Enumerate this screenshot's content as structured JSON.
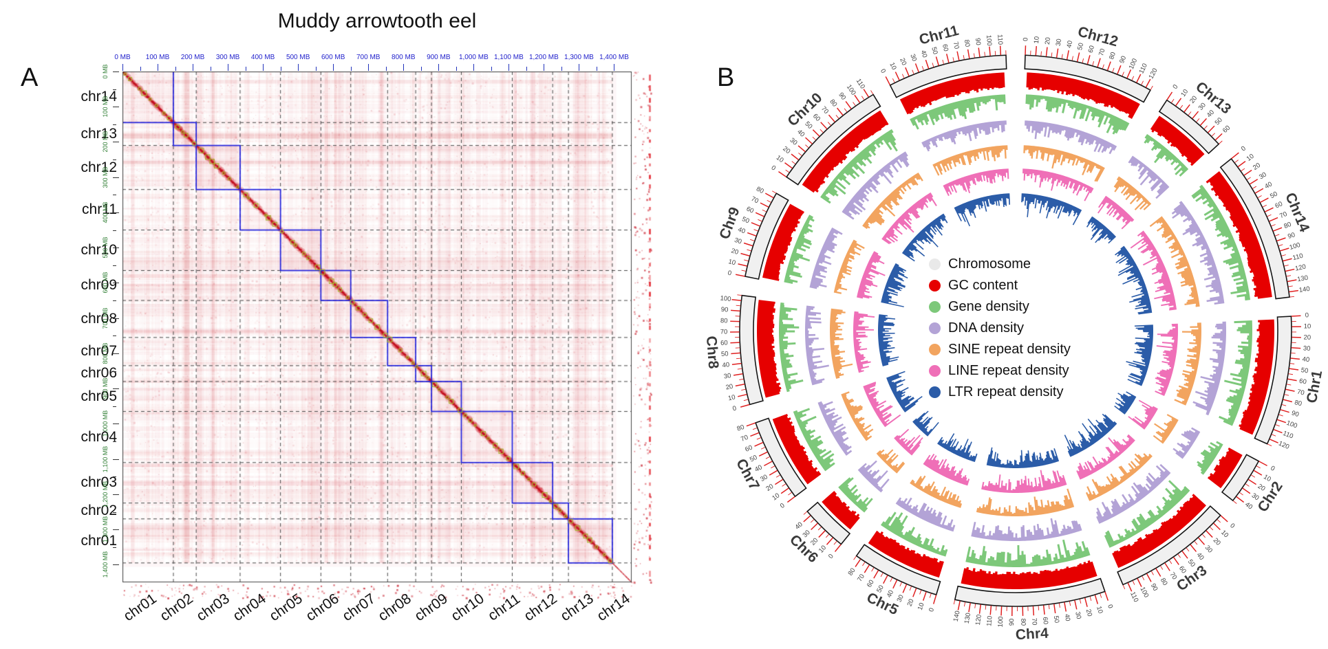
{
  "figure": {
    "background": "#ffffff"
  },
  "chromosomes": [
    {
      "name": "Chr1",
      "length_mb": 125
    },
    {
      "name": "Chr2",
      "length_mb": 45
    },
    {
      "name": "Chr3",
      "length_mb": 115
    },
    {
      "name": "Chr4",
      "length_mb": 145
    },
    {
      "name": "Chr5",
      "length_mb": 85
    },
    {
      "name": "Chr6",
      "length_mb": 45
    },
    {
      "name": "Chr7",
      "length_mb": 80
    },
    {
      "name": "Chr8",
      "length_mb": 105
    },
    {
      "name": "Chr9",
      "length_mb": 85
    },
    {
      "name": "Chr10",
      "length_mb": 115
    },
    {
      "name": "Chr11",
      "length_mb": 115
    },
    {
      "name": "Chr12",
      "length_mb": 125
    },
    {
      "name": "Chr13",
      "length_mb": 65
    },
    {
      "name": "Chr14",
      "length_mb": 145
    }
  ],
  "panelA": {
    "label": "A",
    "title": "Muddy arrowtooth eel",
    "top_axis_labels": [
      "0 MB",
      "100 MB",
      "200 MB",
      "300 MB",
      "400 MB",
      "500 MB",
      "600 MB",
      "700 MB",
      "800 MB",
      "900 MB",
      "1,000 MB",
      "1,100 MB",
      "1,200 MB",
      "1,300 MB",
      "1,400 MB"
    ],
    "left_axis_labels": [
      "0 MB",
      "100 MB",
      "200 MB",
      "300 MB",
      "400 MB",
      "500 MB",
      "600 MB",
      "700 MB",
      "800 MB",
      "900 MB",
      "1,000 MB",
      "1,100 MB",
      "1,200 MB",
      "1,300 MB",
      "1,400 MB"
    ],
    "row_labels": [
      "chr14",
      "chr13",
      "chr12",
      "chr11",
      "chr10",
      "chr09",
      "chr08",
      "chr07",
      "chr06",
      "chr05",
      "chr04",
      "chr03",
      "chr02",
      "chr01"
    ],
    "col_labels": [
      "chr01",
      "chr02",
      "chr03",
      "chr04",
      "chr05",
      "chr06",
      "chr07",
      "chr08",
      "chr09",
      "chr10",
      "chr11",
      "chr12",
      "chr13",
      "chr14"
    ],
    "total_axis_mb": 1450,
    "seed": 1337,
    "colors": {
      "heat_base": "#cd2330",
      "heat_diag": "#c30d1d",
      "block_border": "#2121dd",
      "scaffold_square": "#a6b52c",
      "top_axis_text": "#2222cc",
      "left_mb_text": "#2e7d32",
      "grid_dash": "#464646",
      "border": "#444444"
    }
  },
  "panelB": {
    "label": "B",
    "legend": [
      {
        "label": "Chromosome",
        "color": "#e9e9e9"
      },
      {
        "label": "GC content",
        "color": "#e60000"
      },
      {
        "label": "Gene density",
        "color": "#7dc87a"
      },
      {
        "label": "DNA density",
        "color": "#b3a3d6"
      },
      {
        "label": "SINE repeat density",
        "color": "#f2a45f"
      },
      {
        "label": "LINE repeat density",
        "color": "#ef6fb7"
      },
      {
        "label": "LTR repeat density",
        "color": "#2b5ca8"
      }
    ],
    "ring": {
      "fill": "#f0f0f0",
      "stroke": "#151515",
      "tick_color": "#e02020",
      "tick_label_color": "#444444",
      "name_color": "#3a3a3a"
    },
    "tracks": [
      {
        "name": "GC content",
        "color": "#e60000",
        "outer": 376,
        "depth": 26,
        "seed": 3
      },
      {
        "name": "Gene density",
        "color": "#7dc87a",
        "outer": 344,
        "depth": 32,
        "seed": 11
      },
      {
        "name": "DNA density",
        "color": "#b3a3d6",
        "outer": 306,
        "depth": 30,
        "seed": 23
      },
      {
        "name": "SINE repeat density",
        "color": "#f2a45f",
        "outer": 270,
        "depth": 28,
        "seed": 37
      },
      {
        "name": "LINE repeat density",
        "color": "#ef6fb7",
        "outer": 236,
        "depth": 30,
        "seed": 51
      },
      {
        "name": "LTR repeat density",
        "color": "#2b5ca8",
        "outer": 200,
        "depth": 34,
        "seed": 67
      }
    ],
    "tick_major_mb": 10,
    "tick_minor_mb": 5
  },
  "chart_data": [
    {
      "type": "heatmap",
      "panel": "A",
      "title": "Muddy arrowtooth eel",
      "description": "Hi-C all-vs-all chromatin contact matrix; deep red blocks along the diagonal are intra-chromosomal contacts outlined by blue boxes; small yellow-green open squares mark scaffold joins along the diagonal; dashed lines mark chromosome boundaries",
      "rows_top_to_bottom": [
        "chr14",
        "chr13",
        "chr12",
        "chr11",
        "chr10",
        "chr09",
        "chr08",
        "chr07",
        "chr06",
        "chr05",
        "chr04",
        "chr03",
        "chr02",
        "chr01"
      ],
      "cols_left_to_right": [
        "chr01",
        "chr02",
        "chr03",
        "chr04",
        "chr05",
        "chr06",
        "chr07",
        "chr08",
        "chr09",
        "chr10",
        "chr11",
        "chr12",
        "chr13",
        "chr14"
      ],
      "axis_unit": "MB",
      "axis_ticks_mb": [
        0,
        100,
        200,
        300,
        400,
        500,
        600,
        700,
        800,
        900,
        1000,
        1100,
        1200,
        1300,
        1400
      ],
      "axis_range_mb": [
        0,
        1450
      ],
      "chromosome_lengths_mb": {
        "Chr1": 125,
        "Chr2": 45,
        "Chr3": 115,
        "Chr4": 145,
        "Chr5": 85,
        "Chr6": 45,
        "Chr7": 80,
        "Chr8": 105,
        "Chr9": 85,
        "Chr10": 115,
        "Chr11": 115,
        "Chr12": 125,
        "Chr13": 65,
        "Chr14": 145
      }
    },
    {
      "type": "circos",
      "panel": "B",
      "rings_outer_to_inner": [
        "Chromosome",
        "GC content",
        "Gene density",
        "DNA density",
        "SINE repeat density",
        "LINE repeat density",
        "LTR repeat density"
      ],
      "chromosome_order_clockwise_from_top": [
        "Chr12",
        "Chr13",
        "Chr14",
        "Chr1",
        "Chr2",
        "Chr3",
        "Chr4",
        "Chr5",
        "Chr6",
        "Chr7",
        "Chr8",
        "Chr9",
        "Chr10",
        "Chr11"
      ],
      "tick_interval_mb": 10,
      "minor_tick_mb": 5,
      "axis_unit": "MB",
      "chromosome_lengths_mb": {
        "Chr1": 125,
        "Chr2": 45,
        "Chr3": 115,
        "Chr4": 145,
        "Chr5": 85,
        "Chr6": 45,
        "Chr7": 80,
        "Chr8": 105,
        "Chr9": 85,
        "Chr10": 115,
        "Chr11": 115,
        "Chr12": 125,
        "Chr13": 65,
        "Chr14": 145
      },
      "legend_position": "center"
    }
  ]
}
